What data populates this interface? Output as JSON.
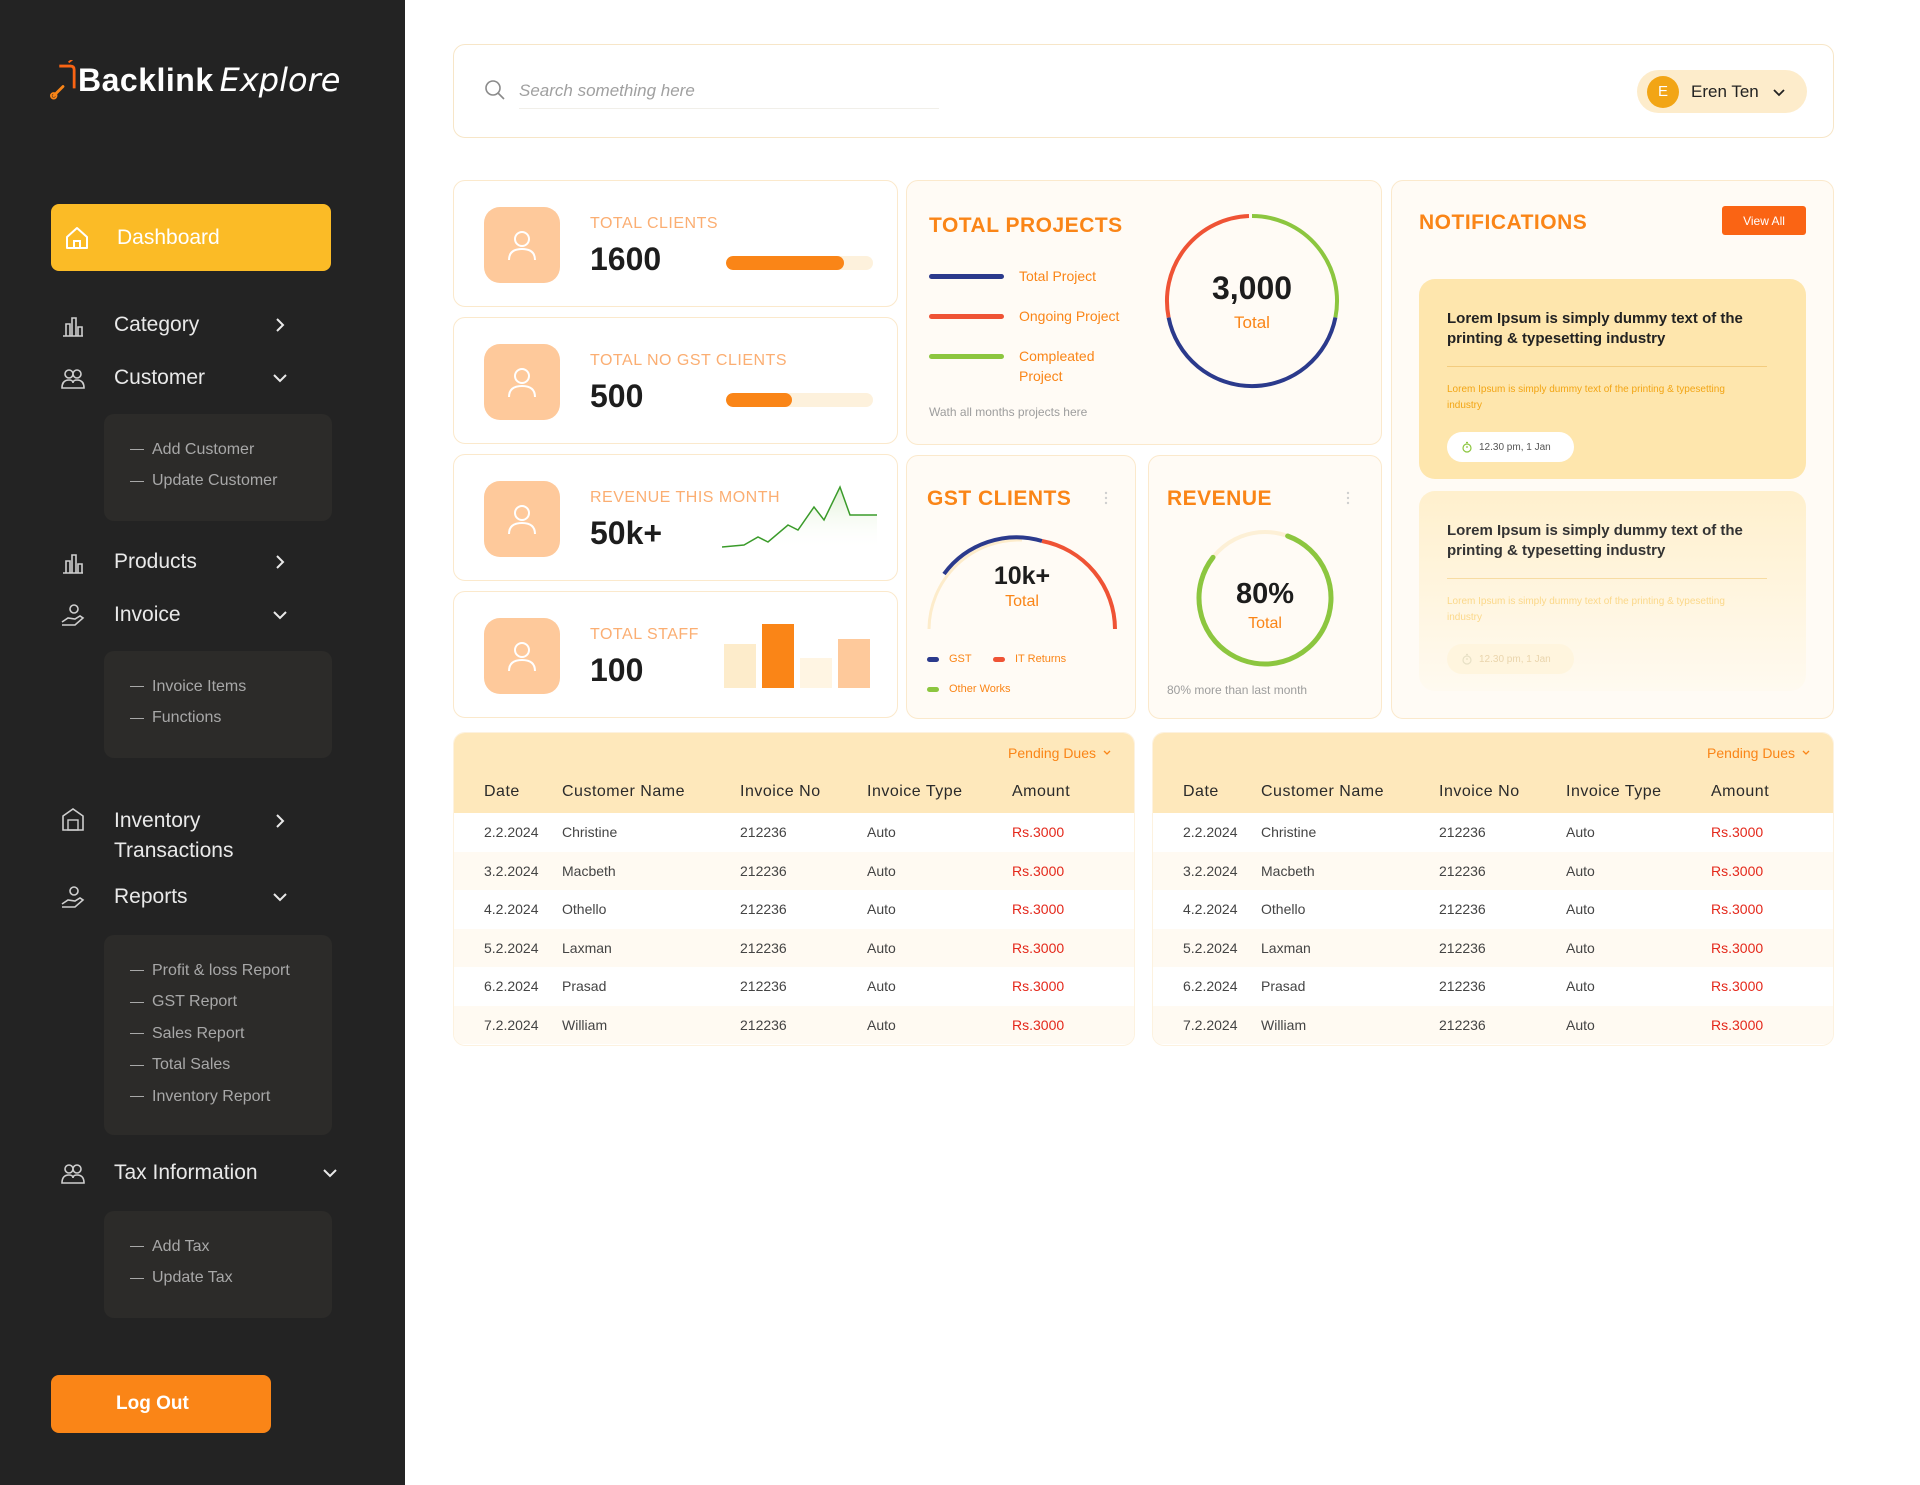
{
  "brand": {
    "name_a": "Backlink",
    "name_b": "Explore"
  },
  "sidebar": {
    "active": "Dashboard",
    "items": [
      {
        "label": "Category",
        "icon": "bar-chart-icon",
        "chevron": "right"
      },
      {
        "label": "Customer",
        "icon": "users-icon",
        "chevron": "down"
      },
      {
        "label": "Products",
        "icon": "bar-chart-icon",
        "chevron": "right"
      },
      {
        "label": "Invoice",
        "icon": "hand-coin-icon",
        "chevron": "down"
      },
      {
        "label": "Inventory",
        "label2": "Transactions",
        "icon": "warehouse-icon",
        "chevron": "right"
      },
      {
        "label": "Reports",
        "icon": "hand-coin-icon",
        "chevron": "down"
      },
      {
        "label": "Tax Information",
        "icon": "users-icon",
        "chevron": "down"
      }
    ],
    "customer_sub": [
      "Add Customer",
      "Update Customer"
    ],
    "invoice_sub": [
      "Invoice Items",
      "Functions"
    ],
    "reports_sub": [
      "Profit & loss Report",
      "GST Report",
      "Sales Report",
      "Total Sales",
      "Inventory Report"
    ],
    "tax_sub": [
      "Add Tax",
      "Update Tax"
    ],
    "logout": "Log Out"
  },
  "topbar": {
    "search_placeholder": "Search something here",
    "user_initial": "E",
    "user_name": "Eren Ten"
  },
  "stats": [
    {
      "label": "TOTAL CLIENTS",
      "value": "1600",
      "progress": 0.8
    },
    {
      "label": "TOTAL NO GST CLIENTS",
      "value": "500",
      "progress": 0.45
    },
    {
      "label": "REVENUE THIS MONTH",
      "value": "50k+"
    },
    {
      "label": "TOTAL STAFF",
      "value": "100"
    }
  ],
  "total_projects": {
    "title": "TOTAL PROJECTS",
    "legend": [
      {
        "label": "Total Project",
        "color": "#2b3a8c"
      },
      {
        "label": "Ongoing Project",
        "color": "#ef5335"
      },
      {
        "label": "Compleated Project",
        "color": "#8cc63f"
      }
    ],
    "note": "Wath all months projects here",
    "center_value": "3,000",
    "center_label": "Total"
  },
  "gst_clients": {
    "title": "GST CLIENTS",
    "center_value": "10k+",
    "center_label": "Total",
    "legend": [
      {
        "label": "GST",
        "color": "#2b3a8c"
      },
      {
        "label": "IT Returns",
        "color": "#ef5335"
      },
      {
        "label": "Other Works",
        "color": "#8cc63f"
      }
    ]
  },
  "revenue": {
    "title": "REVENUE",
    "center_value": "80%",
    "center_label": "Total",
    "percent": 80,
    "note": "80% more than last month"
  },
  "notifications": {
    "title": "NOTIFICATIONS",
    "view_all": "View All",
    "items": [
      {
        "title": "Lorem Ipsum is simply dummy text of the printing & typesetting industry",
        "body": "Lorem Ipsum is simply dummy text of the printing & typesetting industry",
        "time": "12.30 pm, 1 Jan"
      },
      {
        "title": "Lorem Ipsum is simply dummy text of the printing & typesetting industry",
        "body": "Lorem Ipsum is simply dummy text of the printing & typesetting industry",
        "time": "12.30 pm, 1 Jan"
      }
    ]
  },
  "tables": {
    "filter": "Pending Dues",
    "columns": [
      "Date",
      "Customer Name",
      "Invoice No",
      "Invoice Type",
      "Amount"
    ],
    "rows": [
      [
        "2.2.2024",
        "Christine",
        "212236",
        "Auto",
        "Rs.3000"
      ],
      [
        "3.2.2024",
        "Macbeth",
        "212236",
        "Auto",
        "Rs.3000"
      ],
      [
        "4.2.2024",
        "Othello",
        "212236",
        "Auto",
        "Rs.3000"
      ],
      [
        "5.2.2024",
        "Laxman",
        "212236",
        "Auto",
        "Rs.3000"
      ],
      [
        "6.2.2024",
        "Prasad",
        "212236",
        "Auto",
        "Rs.3000"
      ],
      [
        "7.2.2024",
        "William",
        "212236",
        "Auto",
        "Rs.3000"
      ]
    ]
  },
  "colors": {
    "accent": "#fa8517",
    "sidebar": "#232323",
    "active_nav": "#fbbb26"
  }
}
